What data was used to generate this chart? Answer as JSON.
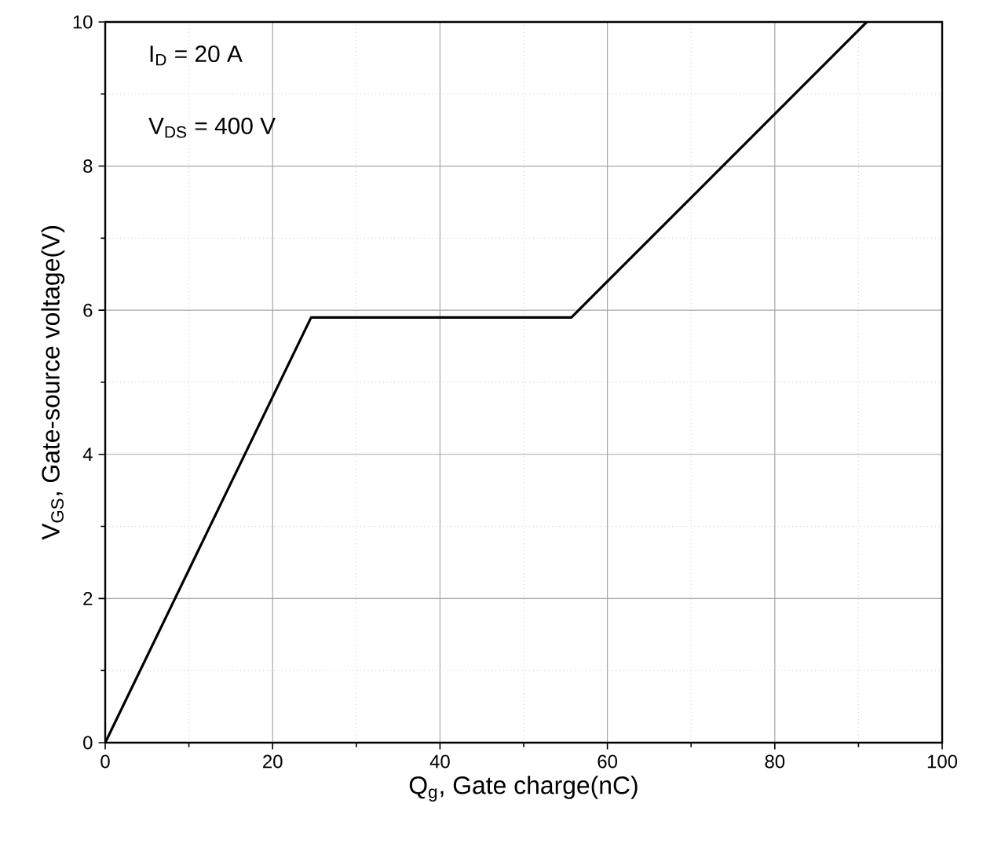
{
  "chart_data": {
    "type": "line",
    "xlabel": "Q$_{g}$, Gate charge(nC)",
    "ylabel": "V$_{GS}$, Gate-source voltage(V)",
    "annotations": [
      "I$_{D}$ = 20 A",
      "V$_{DS}$ = 400 V"
    ],
    "x": [
      0,
      24.6,
      55.7,
      91.0
    ],
    "series": [
      {
        "color": "#000000",
        "values": [
          0,
          5.9,
          5.9,
          10
        ]
      }
    ],
    "xlim": [
      0,
      100
    ],
    "ylim": [
      0,
      10
    ],
    "xticks": [
      0,
      20,
      40,
      60,
      80,
      100
    ],
    "yticks": [
      0,
      2,
      4,
      6,
      8,
      10
    ],
    "grid": true,
    "marker": "none",
    "line_style": "solid"
  }
}
